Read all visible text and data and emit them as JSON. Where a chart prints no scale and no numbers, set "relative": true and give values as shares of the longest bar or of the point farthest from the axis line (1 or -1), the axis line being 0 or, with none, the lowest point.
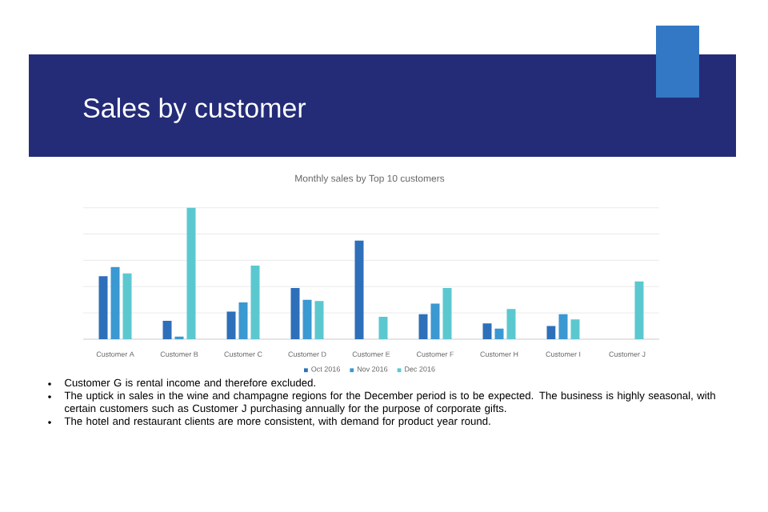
{
  "chart_data": {
    "type": "bar",
    "title": "Sales by customer",
    "subtitle": "Monthly sales by Top 10 customers",
    "categories": [
      "Customer A",
      "Customer B",
      "Customer C",
      "Customer D",
      "Customer E",
      "Customer F",
      "Customer H",
      "Customer I",
      "Customer J"
    ],
    "series": [
      {
        "name": "Oct 2016",
        "color": "#2e6fba",
        "values": [
          0.48,
          0.14,
          0.21,
          0.39,
          0.75,
          0.19,
          0.12,
          0.1,
          null
        ]
      },
      {
        "name": "Nov 2016",
        "color": "#3a98d2",
        "values": [
          0.55,
          0.02,
          0.28,
          0.3,
          null,
          0.27,
          0.08,
          0.19,
          null
        ]
      },
      {
        "name": "Dec 2016",
        "color": "#5bc8d0",
        "values": [
          0.5,
          1.0,
          0.56,
          0.29,
          0.17,
          0.39,
          0.23,
          0.15,
          0.44
        ]
      }
    ],
    "relative": true,
    "grid": "y",
    "legend": "bottom",
    "annotations": [
      "Customer G is rental income and therefore excluded.",
      "The uptick in sales in the wine and champagne regions for the December period is to be expected. The business is highly seasonal, with certain customers such as Customer J purchasing annually for the purpose of corporate gifts.",
      "The hotel and restaurant clients are more consistent, with demand for product year round."
    ]
  }
}
